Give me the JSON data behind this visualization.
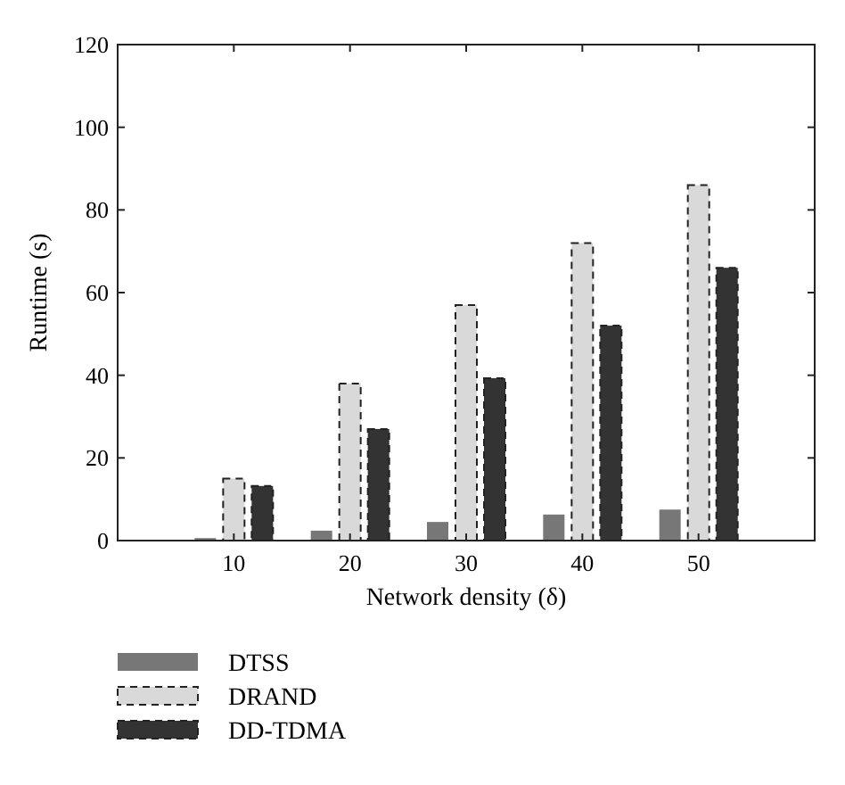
{
  "chart_data": {
    "type": "bar",
    "xlabel": "Network density (δ)",
    "ylabel": "Runtime (s)",
    "categories": [
      "10",
      "20",
      "30",
      "40",
      "50"
    ],
    "series": [
      {
        "name": "DTSS",
        "color": "#777777",
        "values": [
          0.6,
          2.4,
          4.5,
          6.3,
          7.5
        ]
      },
      {
        "name": "DRAND",
        "color": "#d9d9d9",
        "line_style": "dashed",
        "values": [
          15,
          38,
          57,
          72,
          86
        ]
      },
      {
        "name": "DD-TDMA",
        "color": "#333333",
        "line_style": "dashed",
        "values": [
          13.2,
          27,
          39.3,
          52,
          66
        ]
      }
    ],
    "ylim": [
      0,
      120
    ],
    "yticks": [
      0,
      20,
      40,
      60,
      80,
      100,
      120
    ],
    "grid": false,
    "legend": "bottom left"
  }
}
